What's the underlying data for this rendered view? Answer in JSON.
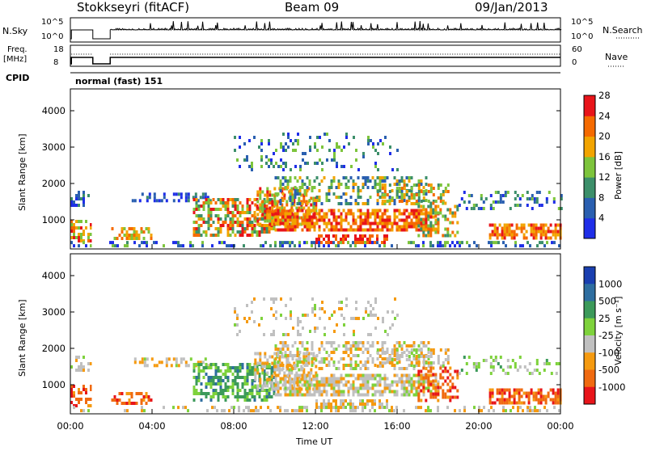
{
  "header": {
    "station": "Stokkseyri (fitACF)",
    "beam": "Beam 09",
    "date": "09/Jan/2013"
  },
  "left_labels": {
    "nsky": "N.Sky",
    "nsky_top": "10^5",
    "nsky_bottom": "10^0",
    "freq": "Freq.",
    "freq_unit": "[MHz]",
    "freq_top": "18",
    "freq_bottom": "8",
    "cpid": "CPID",
    "cpid_value": "normal (fast) 151"
  },
  "right_labels": {
    "nsearch": "N.Search",
    "nsearch_top": "10^5",
    "nsearch_bottom": "10^0",
    "nave": "Nave",
    "nave_top": "60",
    "nave_bottom": "0"
  },
  "chart_data": [
    {
      "type": "heatmap",
      "title": "",
      "xlabel": "",
      "ylabel": "Slant Range [km]",
      "ylim": [
        200,
        4600
      ],
      "yticks": [
        "1000",
        "2000",
        "3000",
        "4000"
      ],
      "colorbar": {
        "label": "Power [dB]",
        "ticks": [
          "4",
          "8",
          "12",
          "16",
          "20",
          "24",
          "28"
        ],
        "colors": [
          "#1f2ee8",
          "#2a5fb0",
          "#3c8f6a",
          "#7dc43c",
          "#f2a400",
          "#f56a00",
          "#e8141a"
        ]
      }
    },
    {
      "type": "heatmap",
      "title": "",
      "xlabel": "Time UT",
      "ylabel": "Slant Range [km]",
      "ylim": [
        200,
        4600
      ],
      "yticks": [
        "1000",
        "2000",
        "3000",
        "4000"
      ],
      "xticks": [
        "00:00",
        "04:00",
        "08:00",
        "12:00",
        "16:00",
        "20:00",
        "00:00"
      ],
      "colorbar": {
        "label": "Velocity [m s⁻¹]",
        "ticks": [
          "1000",
          "500",
          "25",
          "-25",
          "-100",
          "-500",
          "-1000"
        ],
        "colors": [
          "#1a3fb0",
          "#2e6ea0",
          "#3c9a5a",
          "#7ed23c",
          "#c0c0c0",
          "#f59a10",
          "#f06a10",
          "#e8141a"
        ]
      }
    }
  ]
}
